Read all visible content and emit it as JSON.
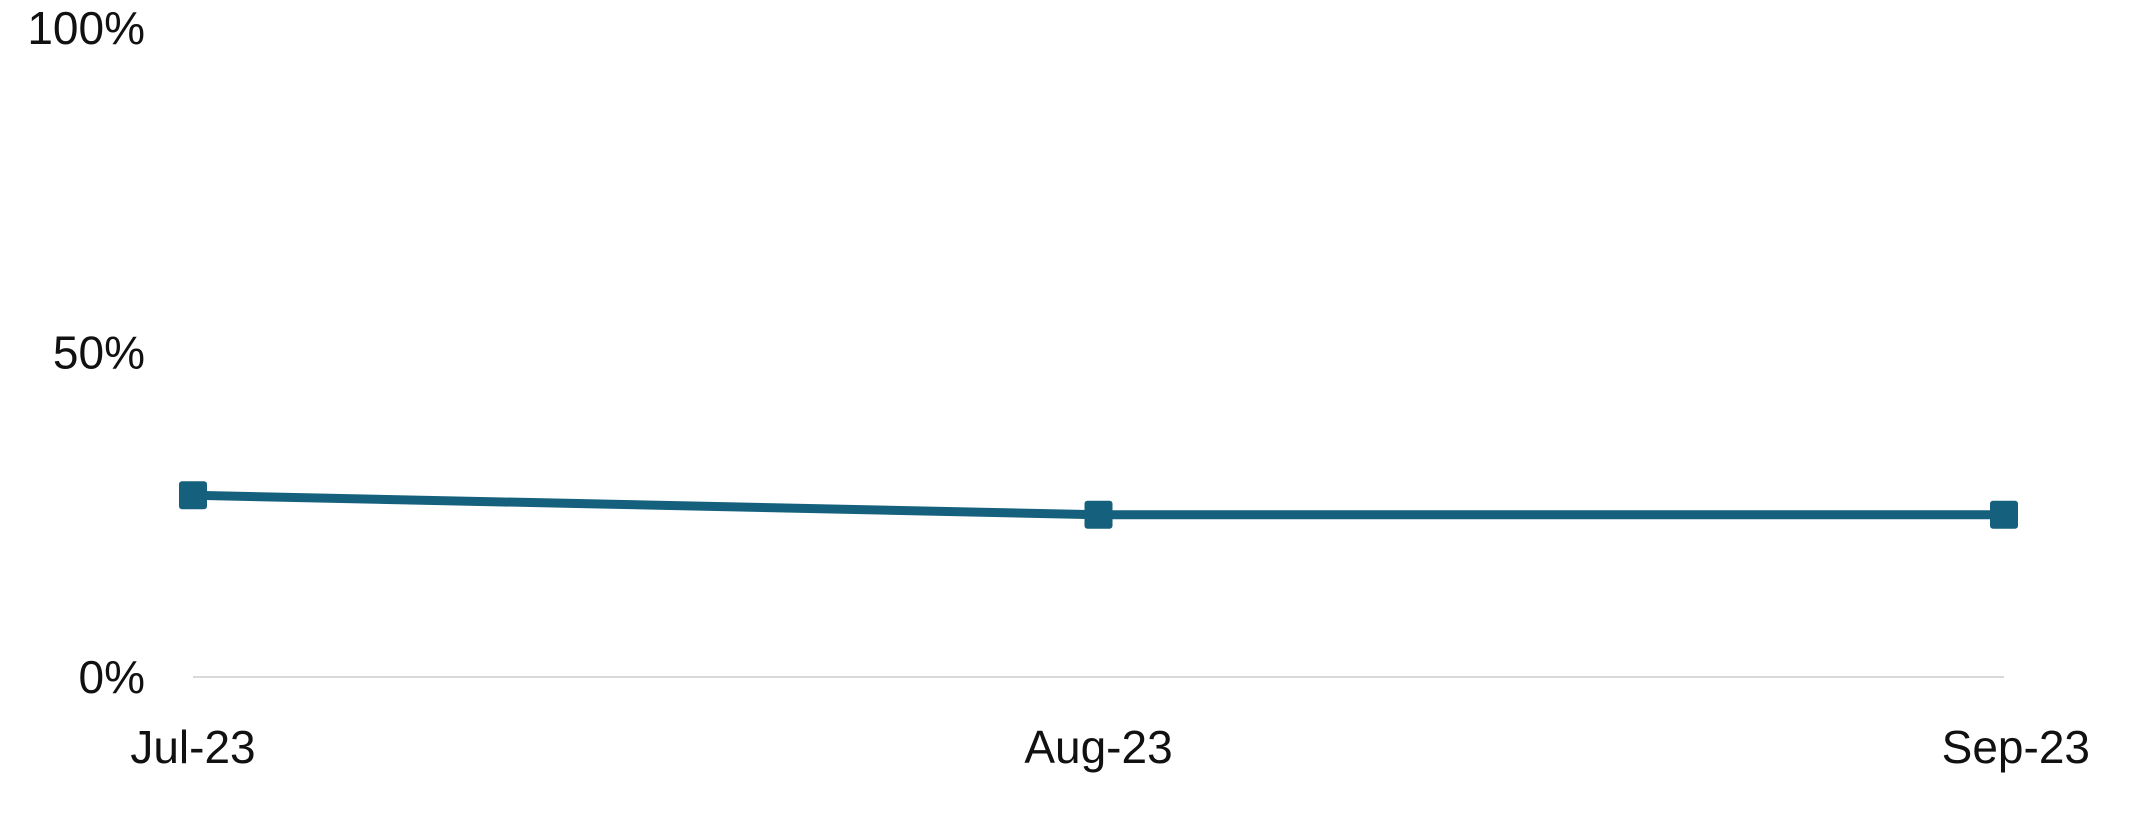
{
  "chart_data": {
    "type": "line",
    "categories": [
      "Jul-23",
      "Aug-23",
      "Sep-23"
    ],
    "series": [
      {
        "values": [
          0.28,
          0.25,
          0.25
        ],
        "color": "#14607d",
        "marker": "square"
      }
    ],
    "yticks": [
      {
        "value": 0,
        "label": "0%"
      },
      {
        "value": 0.5,
        "label": "50%"
      },
      {
        "value": 1,
        "label": "100%"
      }
    ],
    "ylim": [
      0,
      1
    ],
    "title": "",
    "xlabel": "",
    "ylabel": "",
    "grid": false,
    "baseline_color": "#d9d9d9"
  }
}
